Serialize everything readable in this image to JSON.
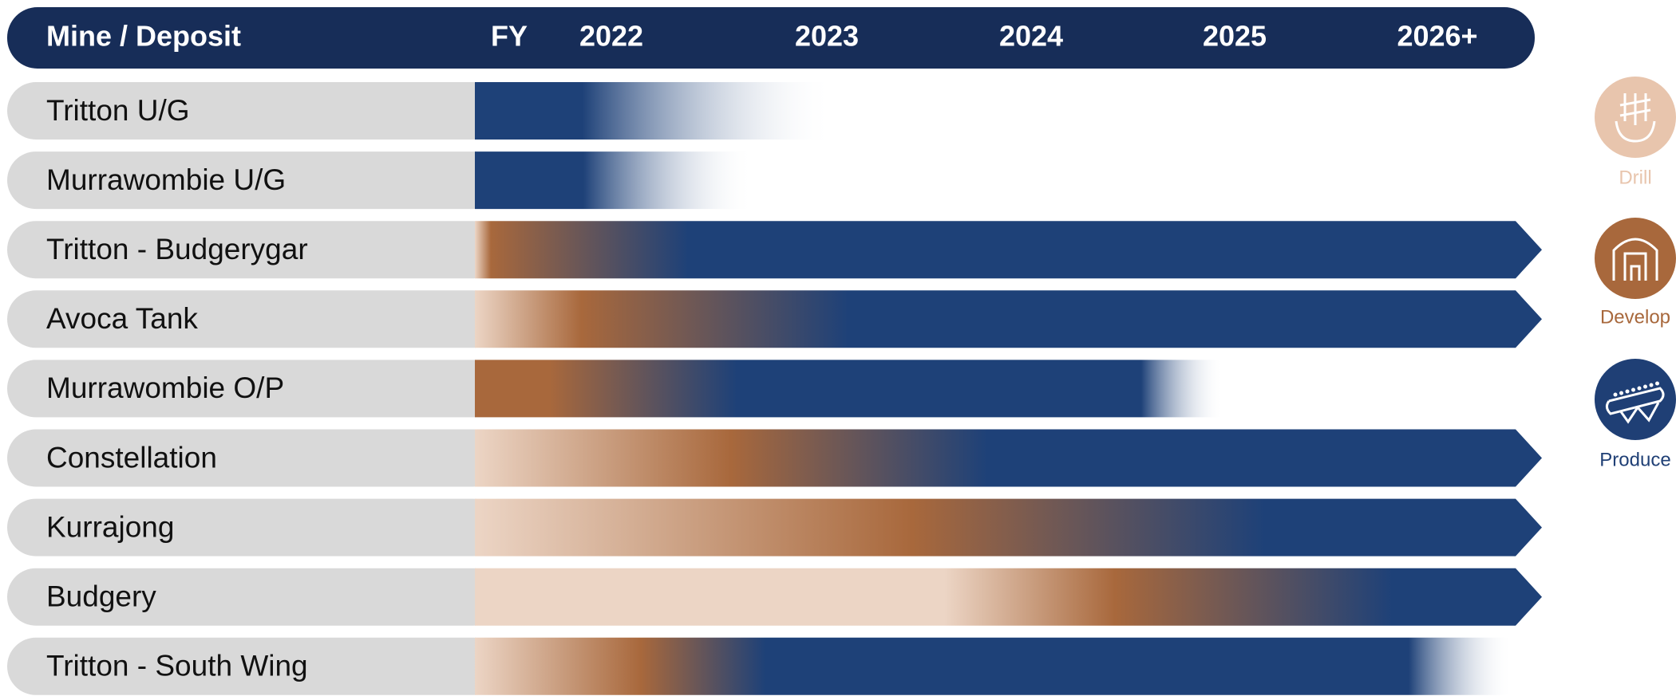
{
  "header": {
    "title": "Mine / Deposit",
    "columns": [
      "FY",
      "2022",
      "2023",
      "2024",
      "2025",
      "2026+"
    ]
  },
  "rows": [
    "Tritton U/G",
    "Murrawombie U/G",
    "Tritton - Budgerygar",
    "Avoca Tank",
    "Murrawombie O/P",
    "Constellation",
    "Kurrajong",
    "Budgery",
    "Tritton - South Wing"
  ],
  "legend": [
    "Drill",
    "Develop",
    "Produce"
  ]
}
